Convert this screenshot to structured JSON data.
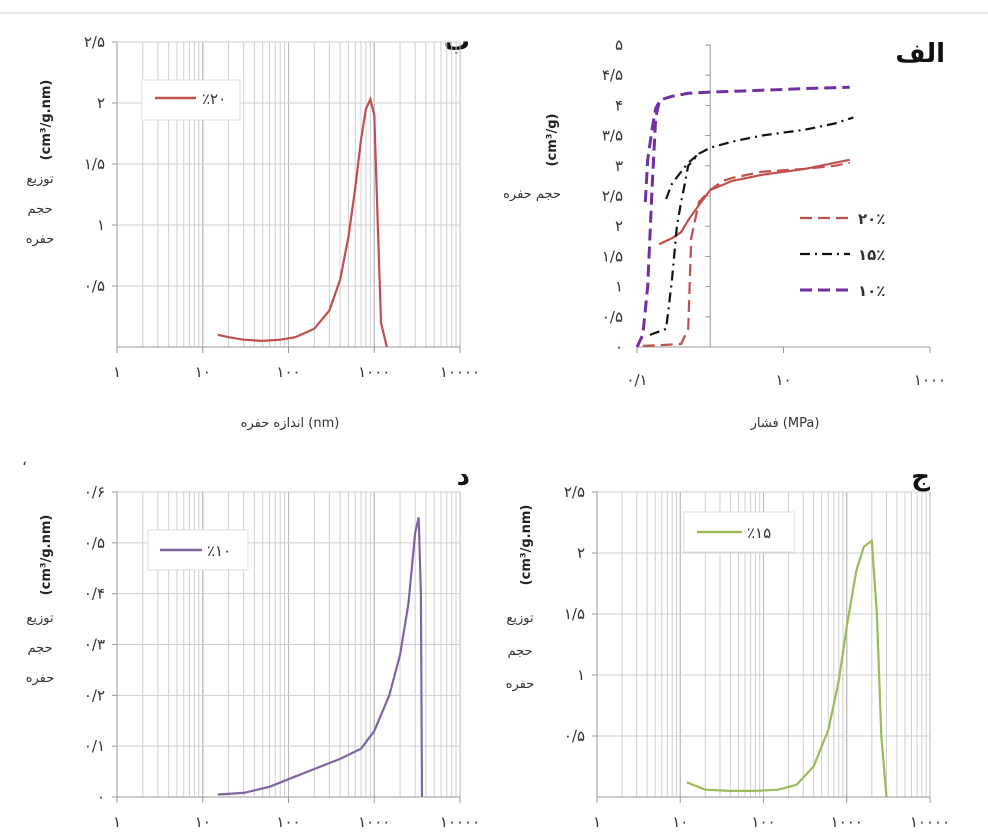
{
  "chart_data": [
    {
      "id": "alef",
      "type": "line",
      "title": "الف",
      "xlabel": "فشار (MPa)",
      "ylabel": "حجم حفره (cm³/g)",
      "x_scale": "log",
      "xlim": [
        0.1,
        1000
      ],
      "ylim": [
        0,
        5
      ],
      "x_tick_labels": [
        "۰/۱",
        "۱۰",
        "۱۰۰۰"
      ],
      "y_tick_labels": [
        "۰",
        "۰/۵",
        "۱",
        "۱/۵",
        "۲",
        "۲/۵",
        "۳",
        "۳/۵",
        "۴",
        "۴/۵",
        "۵"
      ],
      "legend_position": "right",
      "colors": {
        "20": "#c0504d",
        "15": "#111111",
        "10": "#7030a0"
      },
      "series": [
        {
          "name": "۲۰٪",
          "style": "dashed",
          "color": "#c0504d",
          "x": [
            0.12,
            0.2,
            0.4,
            0.5,
            0.55,
            0.7,
            1,
            1.5,
            2,
            5,
            20,
            50,
            80
          ],
          "y": [
            0.02,
            0.03,
            0.05,
            0.3,
            1.8,
            2.4,
            2.6,
            2.75,
            2.8,
            2.9,
            2.95,
            3,
            3.05
          ]
        },
        {
          "name": "۲۰٪",
          "style": "solid",
          "color": "#c0504d",
          "x": [
            0.2,
            0.3,
            0.4,
            0.5,
            0.7,
            1,
            2,
            5,
            20,
            50,
            80
          ],
          "y": [
            1.7,
            1.8,
            1.9,
            2.1,
            2.35,
            2.6,
            2.75,
            2.85,
            2.95,
            3.05,
            3.1
          ]
        },
        {
          "name": "۱۵٪",
          "style": "dashdot",
          "color": "#111111",
          "x": [
            0.15,
            0.25,
            0.3,
            0.35,
            0.4,
            0.45,
            0.5,
            0.7,
            1,
            2,
            5,
            20,
            50,
            90
          ],
          "y": [
            0.2,
            0.3,
            1.1,
            2.0,
            2.4,
            2.7,
            3.0,
            3.2,
            3.3,
            3.4,
            3.5,
            3.6,
            3.7,
            3.8
          ]
        },
        {
          "name": "۱۵٪",
          "style": "dashdot",
          "color": "#111111",
          "x": [
            0.25,
            0.3,
            0.4,
            0.5,
            0.7
          ],
          "y": [
            2.45,
            2.7,
            2.9,
            3.05,
            3.2
          ]
        },
        {
          "name": "۱۰٪",
          "style": "dashed",
          "color": "#7030a0",
          "x": [
            0.1,
            0.12,
            0.14,
            0.16,
            0.18,
            0.2,
            0.22,
            0.3,
            0.5,
            1,
            5,
            20,
            80
          ],
          "y": [
            0.0,
            0.2,
            1.0,
            2.6,
            3.8,
            4.05,
            4.1,
            4.15,
            4.2,
            4.22,
            4.25,
            4.28,
            4.3
          ]
        },
        {
          "name": "۱۰٪",
          "style": "dashed",
          "color": "#7030a0",
          "x": [
            0.13,
            0.14,
            0.16,
            0.18,
            0.2
          ],
          "y": [
            2.4,
            3.1,
            3.6,
            3.95,
            4.05
          ]
        }
      ],
      "legend": [
        {
          "label": "۲۰٪",
          "color": "#c0504d",
          "style": "dashed"
        },
        {
          "label": "۱۵٪",
          "color": "#111111",
          "style": "dashdot"
        },
        {
          "label": "۱۰٪",
          "color": "#7030a0",
          "style": "dashed"
        }
      ]
    },
    {
      "id": "be",
      "type": "line",
      "title": "ب",
      "xlabel": "اندازه حفره (nm)",
      "ylabel_unit": "(cm³/g.nm)",
      "ylabel_lines": [
        "توزیع",
        "حجم",
        "حفره"
      ],
      "x_scale": "log",
      "xlim": [
        1,
        10000
      ],
      "ylim": [
        0,
        2.5
      ],
      "x_tick_labels": [
        "۱",
        "۱۰",
        "۱۰۰",
        "۱۰۰۰",
        "۱۰۰۰۰"
      ],
      "y_tick_labels": [
        "۰/۵",
        "۱",
        "۱/۵",
        "۲",
        "۲/۵"
      ],
      "y_tick_values": [
        0.5,
        1,
        1.5,
        2,
        2.5
      ],
      "legend_position": "top-left",
      "series": [
        {
          "name": "٪۲۰",
          "color": "#c0504d",
          "x": [
            15,
            20,
            30,
            50,
            80,
            120,
            200,
            300,
            400,
            500,
            600,
            700,
            800,
            900,
            1000,
            1100,
            1200,
            1400
          ],
          "y": [
            0.1,
            0.08,
            0.06,
            0.05,
            0.06,
            0.08,
            0.15,
            0.3,
            0.55,
            0.9,
            1.3,
            1.7,
            1.95,
            2.03,
            1.9,
            1.0,
            0.2,
            0.0
          ]
        }
      ]
    },
    {
      "id": "dal",
      "type": "line",
      "title": "د",
      "xlabel": "",
      "ylabel_unit": "(cm³/g.nm)",
      "ylabel_lines": [
        "توزیع",
        "حجم",
        "حفره"
      ],
      "x_scale": "log",
      "xlim": [
        1,
        10000
      ],
      "ylim": [
        0,
        0.6
      ],
      "x_tick_labels": [
        "۱",
        "۱۰",
        "۱۰۰",
        "۱۰۰۰",
        "۱۰۰۰۰"
      ],
      "y_tick_labels": [
        "۰",
        "۰/۱",
        "۰/۲",
        "۰/۳",
        "۰/۴",
        "۰/۵",
        "۰/۶"
      ],
      "y_tick_values": [
        0,
        0.1,
        0.2,
        0.3,
        0.4,
        0.5,
        0.6
      ],
      "legend_position": "top-left",
      "series": [
        {
          "name": "٪۱۰",
          "color": "#8064a2",
          "x": [
            15,
            30,
            60,
            100,
            200,
            400,
            700,
            1000,
            1500,
            2000,
            2500,
            3000,
            3300,
            3500,
            3600
          ],
          "y": [
            0.005,
            0.008,
            0.02,
            0.035,
            0.055,
            0.075,
            0.095,
            0.13,
            0.2,
            0.28,
            0.38,
            0.52,
            0.55,
            0.4,
            0.0
          ]
        }
      ]
    },
    {
      "id": "jim",
      "type": "line",
      "title": "ج",
      "xlabel": "",
      "ylabel_unit": "(cm³/g.nm)",
      "ylabel_lines": [
        "توزیع",
        "حجم",
        "حفره"
      ],
      "x_scale": "log",
      "xlim": [
        1,
        10000
      ],
      "ylim": [
        0,
        2.5
      ],
      "x_tick_labels": [
        "۱",
        "۱۰",
        "۱۰۰",
        "۱۰۰۰",
        "۱۰۰۰۰"
      ],
      "y_tick_labels": [
        "۰/۵",
        "۱",
        "۱/۵",
        "۲",
        "۲/۵"
      ],
      "y_tick_values": [
        0.5,
        1,
        1.5,
        2,
        2.5
      ],
      "legend_position": "top-left",
      "series": [
        {
          "name": "٪۱۵",
          "color": "#9bbb59",
          "x": [
            12,
            20,
            40,
            80,
            150,
            250,
            400,
            600,
            800,
            1000,
            1300,
            1600,
            2000,
            2300,
            2600,
            3000
          ],
          "y": [
            0.12,
            0.06,
            0.05,
            0.05,
            0.06,
            0.1,
            0.25,
            0.55,
            0.95,
            1.4,
            1.85,
            2.05,
            2.1,
            1.5,
            0.5,
            0.0
          ]
        }
      ]
    }
  ],
  "stray_mark": "،"
}
